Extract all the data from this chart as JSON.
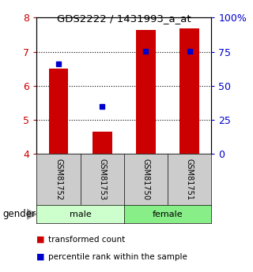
{
  "title": "GDS2222 / 1431993_a_at",
  "samples": [
    "GSM81752",
    "GSM81753",
    "GSM81750",
    "GSM81751"
  ],
  "bar_values": [
    6.5,
    4.65,
    7.63,
    7.68
  ],
  "bar_bottom": 4.0,
  "percentile_values": [
    6.65,
    5.38,
    7.02,
    7.02
  ],
  "bar_color": "#cc0000",
  "dot_color": "#0000cc",
  "ylim": [
    4,
    8
  ],
  "right_ylim": [
    0,
    100
  ],
  "yticks_left": [
    4,
    5,
    6,
    7,
    8
  ],
  "yticks_right": [
    0,
    25,
    50,
    75,
    100
  ],
  "ytick_labels_right": [
    "0",
    "25",
    "50",
    "75",
    "100%"
  ],
  "gender_label": "gender",
  "legend_red": "transformed count",
  "legend_blue": "percentile rank within the sample",
  "bar_width": 0.45,
  "background_color": "#ffffff",
  "left_tick_color": "#cc0000",
  "right_tick_color": "#0000cc",
  "sample_box_color": "#cccccc",
  "male_color": "#ccffcc",
  "female_color": "#88ee88",
  "arrow_color": "#999999"
}
